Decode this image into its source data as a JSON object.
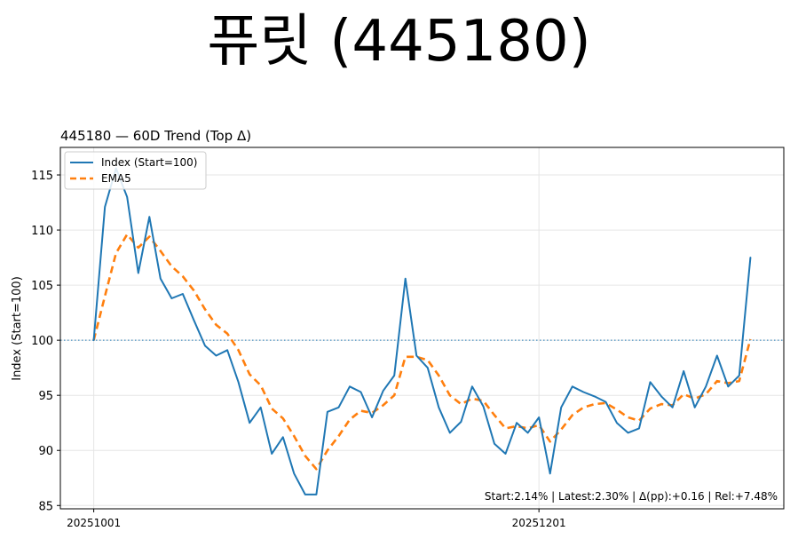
{
  "page_title": "퓨릿 (445180)",
  "chart_data": {
    "type": "line",
    "title": "445180 — 60D Trend (Top Δ)",
    "xlabel": "",
    "ylabel": "Index (Start=100)",
    "ylim": [
      84.7,
      117.5
    ],
    "yticks": [
      85,
      90,
      95,
      100,
      105,
      110,
      115
    ],
    "xlim": [
      -3,
      62
    ],
    "xtick_labels": [
      {
        "i": 0,
        "label": "20251001"
      },
      {
        "i": 40,
        "label": "20251201"
      }
    ],
    "x_index": [
      0,
      1,
      2,
      3,
      4,
      5,
      6,
      7,
      8,
      9,
      10,
      11,
      12,
      13,
      14,
      15,
      16,
      17,
      18,
      19,
      20,
      21,
      22,
      23,
      24,
      25,
      26,
      27,
      28,
      29,
      30,
      31,
      32,
      33,
      34,
      35,
      36,
      37,
      38,
      39,
      40,
      41,
      42,
      43,
      44,
      45,
      46,
      47,
      48,
      49,
      50,
      51,
      52,
      53,
      54,
      55,
      56,
      57,
      58,
      59
    ],
    "series": [
      {
        "name": "Index (Start=100)",
        "color": "#1f77b4",
        "style": "solid",
        "values": [
          100.0,
          112.1,
          115.6,
          113.0,
          106.1,
          111.2,
          105.6,
          103.8,
          104.2,
          101.8,
          99.5,
          98.6,
          99.1,
          96.2,
          92.5,
          93.9,
          89.7,
          91.2,
          87.9,
          86.0,
          86.0,
          93.5,
          93.9,
          95.8,
          95.3,
          93.0,
          95.4,
          96.8,
          105.6,
          98.6,
          97.5,
          93.9,
          91.6,
          92.6,
          95.8,
          94.0,
          90.6,
          89.7,
          92.5,
          91.6,
          93.0,
          87.9,
          93.9,
          95.8,
          95.3,
          94.9,
          94.4,
          92.5,
          91.6,
          92.0,
          96.2,
          94.9,
          93.9,
          97.2,
          93.9,
          95.8,
          98.6,
          95.8,
          96.8,
          107.5
        ]
      },
      {
        "name": "EMA5",
        "color": "#ff7f0e",
        "style": "dashed",
        "values": [
          100.0,
          104.0,
          107.9,
          109.6,
          108.4,
          109.4,
          108.1,
          106.7,
          105.8,
          104.5,
          102.8,
          101.4,
          100.6,
          99.1,
          96.9,
          95.9,
          93.8,
          92.9,
          91.3,
          89.5,
          88.3,
          90.0,
          91.3,
          92.8,
          93.6,
          93.4,
          94.1,
          95.0,
          98.5,
          98.5,
          98.2,
          96.8,
          95.0,
          94.2,
          94.7,
          94.5,
          93.2,
          92.0,
          92.2,
          92.0,
          92.3,
          90.8,
          91.9,
          93.2,
          93.9,
          94.2,
          94.3,
          93.7,
          93.0,
          92.7,
          93.8,
          94.2,
          94.1,
          95.1,
          94.7,
          95.1,
          96.3,
          96.1,
          96.3,
          100.1
        ]
      }
    ],
    "reference_line": {
      "y": 100,
      "color": "#1f77b4",
      "style": "dotted"
    },
    "annotation": "Start:2.14% | Latest:2.30% | Δ(pp):+0.16 | Rel:+7.48%",
    "legend_position": "top-left",
    "grid": true
  }
}
